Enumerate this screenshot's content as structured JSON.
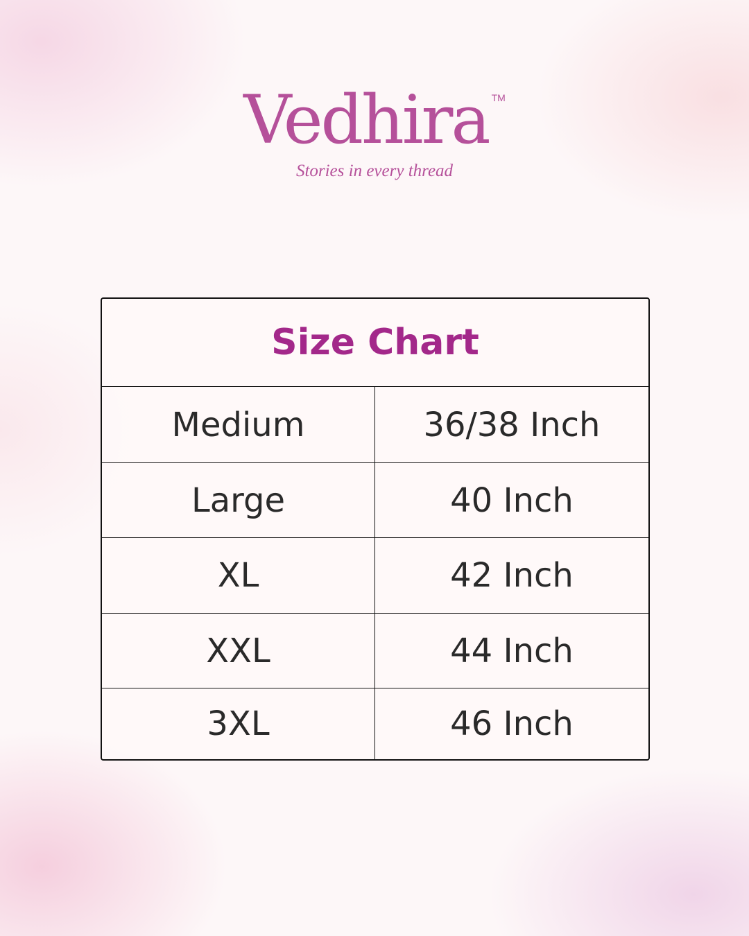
{
  "logo": {
    "brand": "Vedhira",
    "trademark": "TM",
    "tagline": "Stories in every thread",
    "color": "#b5509a"
  },
  "chart": {
    "title": "Size Chart",
    "title_color": "#a3288a",
    "rows": [
      {
        "size": "Medium",
        "measure": "36/38 Inch"
      },
      {
        "size": "Large",
        "measure": "40 Inch"
      },
      {
        "size": "XL",
        "measure": "42 Inch"
      },
      {
        "size": "XXL",
        "measure": "44 Inch"
      },
      {
        "size": "3XL",
        "measure": "46 Inch"
      }
    ]
  }
}
